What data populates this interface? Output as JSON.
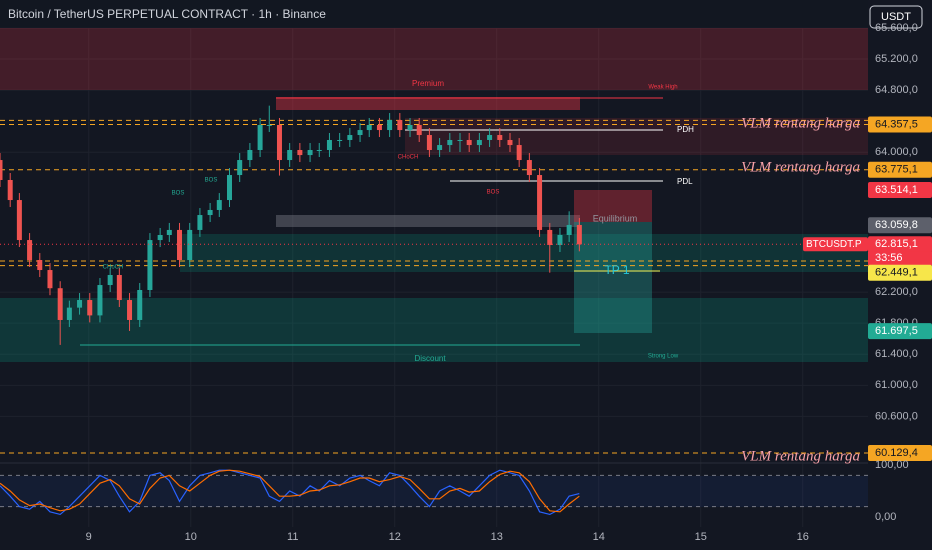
{
  "header": {
    "title": "Bitcoin / TetherUS PERPETUAL CONTRACT · 1h · Binance",
    "currency_button": "USDT"
  },
  "chart_data": [
    {
      "type": "candlestick",
      "up_color": "#26a69a",
      "down_color": "#ef5350",
      "x": [
        8.13,
        8.23,
        8.32,
        8.42,
        8.52,
        8.62,
        8.72,
        8.81,
        8.91,
        9.01,
        9.11,
        9.21,
        9.3,
        9.4,
        9.5,
        9.6,
        9.7,
        9.79,
        9.89,
        9.99,
        10.09,
        10.19,
        10.28,
        10.38,
        10.48,
        10.58,
        10.68,
        10.77,
        10.87,
        10.97,
        11.07,
        11.17,
        11.26,
        11.36,
        11.46,
        11.56,
        11.66,
        11.75,
        11.85,
        11.95,
        12.05,
        12.15,
        12.24,
        12.34,
        12.44,
        12.54,
        12.64,
        12.73,
        12.83,
        12.93,
        13.03,
        13.13,
        13.22,
        13.32,
        13.42,
        13.52,
        13.62,
        13.71,
        13.81
      ],
      "open": [
        63900,
        63643,
        63385,
        62870,
        62613,
        62484,
        62250,
        61841,
        62000,
        62098,
        61900,
        62291,
        62420,
        62098,
        61841,
        62227,
        62870,
        62935,
        63000,
        62613,
        63000,
        63192,
        63257,
        63385,
        63707,
        63900,
        64029,
        64351,
        64351,
        63900,
        64029,
        63964,
        64029,
        64029,
        64158,
        64158,
        64222,
        64286,
        64351,
        64286,
        64415,
        64286,
        64351,
        64222,
        64029,
        64093,
        64158,
        64158,
        64093,
        64158,
        64222,
        64158,
        64093,
        63900,
        63707,
        63000,
        62806,
        62935,
        63064
      ],
      "high": [
        63990,
        63733,
        63475,
        62960,
        62703,
        62574,
        62340,
        62090,
        62188,
        62188,
        62381,
        62510,
        62510,
        62188,
        62317,
        62960,
        63025,
        63090,
        63090,
        63090,
        63282,
        63347,
        63475,
        63797,
        63990,
        64119,
        64441,
        64600,
        64441,
        64119,
        64119,
        64119,
        64119,
        64248,
        64248,
        64312,
        64376,
        64441,
        64441,
        64505,
        64505,
        64441,
        64441,
        64312,
        64183,
        64248,
        64248,
        64248,
        64248,
        64312,
        64312,
        64248,
        64183,
        63990,
        63797,
        63090,
        63025,
        63240,
        63154
      ],
      "low": [
        63553,
        63295,
        62780,
        62523,
        62394,
        62160,
        61520,
        61751,
        61910,
        61810,
        61810,
        62201,
        62008,
        61700,
        61751,
        62137,
        62780,
        62845,
        62523,
        62523,
        62910,
        63102,
        63167,
        63295,
        63617,
        63810,
        63939,
        64261,
        63700,
        63810,
        63874,
        63874,
        63939,
        63939,
        64068,
        64068,
        64132,
        64196,
        64196,
        64196,
        64196,
        64196,
        64132,
        63939,
        63939,
        64003,
        64003,
        64003,
        64003,
        64068,
        64068,
        64003,
        63810,
        63617,
        62910,
        62450,
        62716,
        62845,
        62725
      ],
      "close": [
        63643,
        63385,
        62870,
        62613,
        62484,
        62250,
        61841,
        62000,
        62098,
        61900,
        62291,
        62420,
        62098,
        61841,
        62227,
        62870,
        62935,
        63000,
        62613,
        63000,
        63192,
        63257,
        63385,
        63707,
        63900,
        64029,
        64351,
        64351,
        63900,
        64029,
        63964,
        64029,
        64029,
        64158,
        64158,
        64222,
        64286,
        64351,
        64286,
        64415,
        64286,
        64351,
        64222,
        64029,
        64093,
        64158,
        64158,
        64093,
        64158,
        64222,
        64158,
        64093,
        63900,
        63707,
        63000,
        62806,
        62935,
        63064,
        62815
      ],
      "xlim": [
        8.13,
        16.64
      ],
      "xticks": [
        9,
        10,
        11,
        12,
        13,
        14,
        15,
        16
      ],
      "ylim": [
        60000,
        65960
      ],
      "yticks": [
        {
          "value": 60600,
          "label": "60.600,0"
        },
        {
          "value": 61000,
          "label": "61.000,0"
        },
        {
          "value": 61400,
          "label": "61.400,0"
        },
        {
          "value": 61800,
          "label": "61.800,0"
        },
        {
          "value": 62200,
          "label": "62.200,0"
        },
        {
          "value": 64000,
          "label": "64.000,0"
        },
        {
          "value": 64800,
          "label": "64.800,0"
        },
        {
          "value": 65200,
          "label": "65.200,0"
        },
        {
          "value": 65600,
          "label": "65.600,0"
        }
      ],
      "grid": true,
      "level_color": "#f5a623",
      "dashed_levels": [
        64410,
        64357.5,
        63775.1,
        62600,
        62540,
        60129.4
      ],
      "price_labels": [
        {
          "value": 64357.5,
          "label": "64.357,5",
          "color": "#f5a623",
          "text_color": "#131722"
        },
        {
          "value": 63775.1,
          "label": "63.775,1",
          "color": "#f5a623",
          "text_color": "#131722"
        },
        {
          "value": 63514.1,
          "label": "63.514,1",
          "color": "#f23645",
          "text_color": "#ffffff"
        },
        {
          "value": 63059.8,
          "label": "63.059,8",
          "color": "#5d606b",
          "text_color": "#ffffff"
        },
        {
          "value": 62815.1,
          "label": "62.815,1",
          "color": "#f23645",
          "text_color": "#ffffff",
          "line": "dotted"
        },
        {
          "value": 62449.1,
          "label": "62.449,1",
          "color": "#f7e64a",
          "text_color": "#131722"
        },
        {
          "value": 61697.5,
          "label": "61.697,5",
          "color": "#22ab94",
          "text_color": "#ffffff"
        },
        {
          "value": 60129.4,
          "label": "60.129,4",
          "color": "#f5a623",
          "text_color": "#131722"
        }
      ],
      "symbol_label": "BTCUSDT.P",
      "countdown": "33:56",
      "vlm_labels": [
        "VLM rentang harga",
        "VLM rentang harga",
        "VLM rentang harga"
      ],
      "annotations": [
        "Premium",
        "Weak High",
        "PDH",
        "PDL",
        "Equilibrium",
        "TP 1",
        "Discount",
        "Strong Low",
        "BOS",
        "BOS",
        "CHoCH",
        "CHoCH",
        "BOS"
      ]
    },
    {
      "type": "line",
      "x": [
        8.13,
        8.23,
        8.32,
        8.42,
        8.52,
        8.62,
        8.72,
        8.81,
        8.91,
        9.01,
        9.11,
        9.21,
        9.3,
        9.4,
        9.5,
        9.6,
        9.7,
        9.79,
        9.89,
        9.99,
        10.09,
        10.19,
        10.28,
        10.38,
        10.48,
        10.58,
        10.68,
        10.77,
        10.87,
        10.97,
        11.07,
        11.17,
        11.26,
        11.36,
        11.46,
        11.56,
        11.66,
        11.75,
        11.85,
        11.95,
        12.05,
        12.15,
        12.24,
        12.34,
        12.44,
        12.54,
        12.64,
        12.73,
        12.83,
        12.93,
        13.03,
        13.13,
        13.22,
        13.32,
        13.42,
        13.52,
        13.62,
        13.71,
        13.81
      ],
      "series": [
        {
          "color": "#2962ff",
          "values": [
            60,
            40,
            20,
            15,
            30,
            10,
            5,
            20,
            40,
            60,
            80,
            70,
            40,
            10,
            30,
            80,
            85,
            70,
            30,
            60,
            80,
            85,
            90,
            90,
            85,
            80,
            75,
            40,
            30,
            50,
            40,
            60,
            50,
            70,
            60,
            75,
            80,
            70,
            60,
            85,
            80,
            60,
            40,
            20,
            50,
            60,
            50,
            40,
            60,
            80,
            90,
            85,
            80,
            50,
            10,
            5,
            15,
            40,
            45
          ]
        },
        {
          "color": "#ff6d00",
          "values": [
            65,
            50,
            33,
            22,
            25,
            18,
            12,
            15,
            25,
            45,
            65,
            72,
            60,
            35,
            25,
            55,
            75,
            80,
            60,
            50,
            65,
            80,
            88,
            90,
            88,
            83,
            78,
            60,
            40,
            40,
            42,
            50,
            52,
            60,
            62,
            68,
            75,
            75,
            68,
            72,
            78,
            72,
            55,
            35,
            35,
            50,
            55,
            48,
            50,
            68,
            82,
            88,
            85,
            68,
            35,
            12,
            10,
            25,
            40
          ]
        }
      ],
      "xlim": [
        8.13,
        16.64
      ],
      "ylim": [
        -19.2,
        115.4
      ],
      "yticks": [
        {
          "value": 0,
          "label": "0,00"
        },
        {
          "value": 100,
          "label": "100,00"
        }
      ],
      "levels": [
        80,
        20
      ]
    }
  ]
}
